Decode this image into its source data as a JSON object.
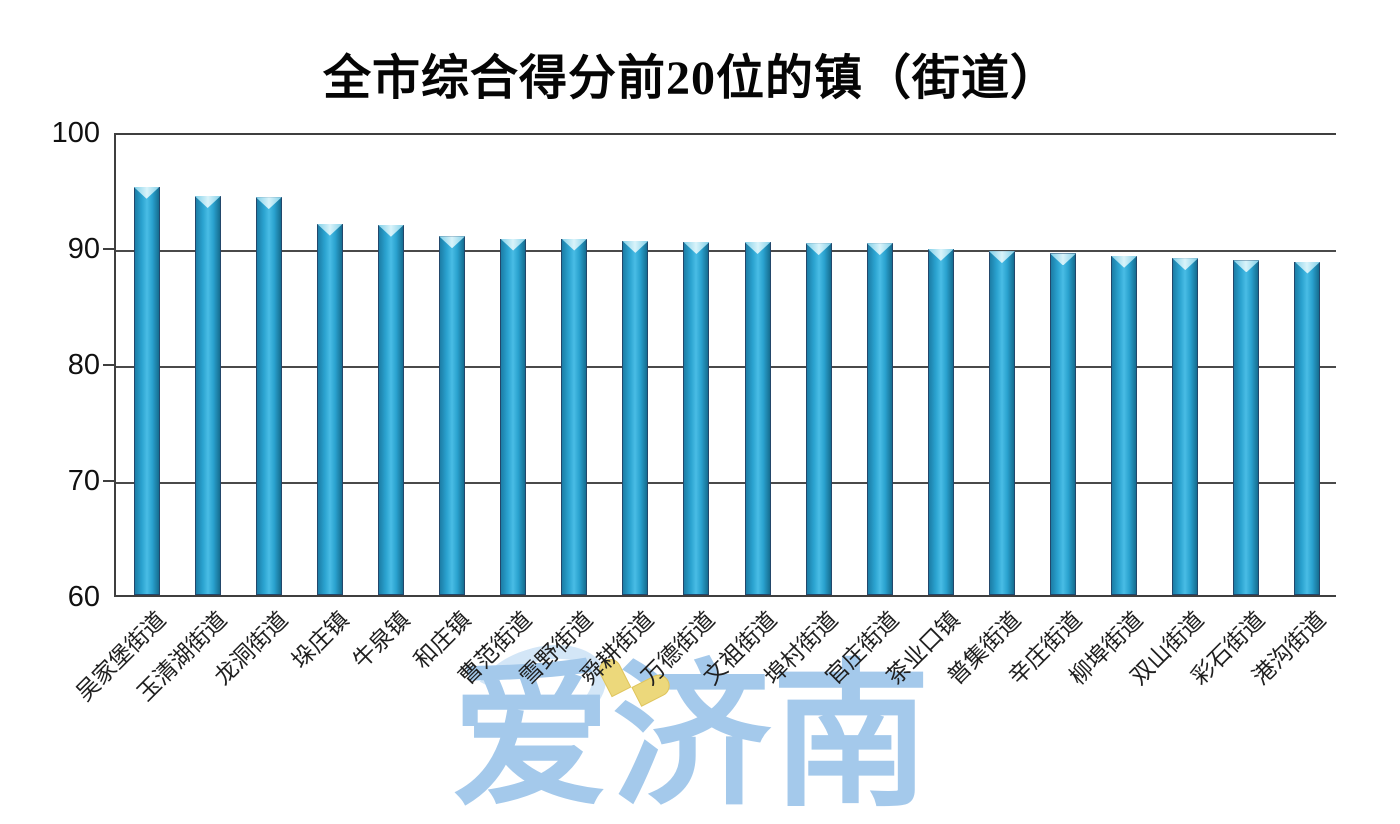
{
  "title": "全市综合得分前20位的镇（街道）",
  "watermark": {
    "text": "爱济南",
    "heart_icon": "heart-icon",
    "text_color": "#a4c9eb",
    "heart_color": "#ecd87b"
  },
  "chart_data": {
    "type": "bar",
    "title": "全市综合得分前20位的镇（街道）",
    "categories": [
      "吴家堡街道",
      "玉清湖街道",
      "龙洞街道",
      "垛庄镇",
      "牛泉镇",
      "和庄镇",
      "曹范街道",
      "雪野街道",
      "舜耕街道",
      "万德街道",
      "文祖街道",
      "埠村街道",
      "官庄街道",
      "茶业口镇",
      "普集街道",
      "辛庄街道",
      "柳埠街道",
      "双山街道",
      "彩石街道",
      "港沟街道"
    ],
    "values": [
      95.5,
      94.7,
      94.6,
      92.3,
      92.2,
      91.2,
      91.0,
      91.0,
      90.8,
      90.7,
      90.7,
      90.6,
      90.6,
      90.1,
      89.9,
      89.7,
      89.5,
      89.3,
      89.1,
      89.0
    ],
    "xlabel": "",
    "ylabel": "",
    "ylim": [
      60,
      100
    ],
    "yticks": [
      100,
      90,
      80,
      70,
      60
    ],
    "grid": true,
    "legend": "none",
    "bar_color_mid": "#2aa2cf",
    "bar_color_edge": "#1c7da6",
    "bar_outline": "#23476b",
    "bar_top_highlight": "#d9f3fa",
    "gridline_color": "#4a4a4a",
    "axis_text_color": "#111111",
    "background": "#ffffff"
  }
}
